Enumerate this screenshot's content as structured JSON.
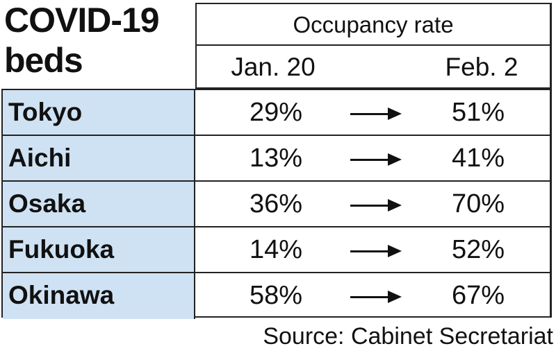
{
  "chart_data": {
    "type": "table",
    "title_lines": [
      "COVID-19",
      "beds"
    ],
    "column_group_header": "Occupancy rate",
    "columns": [
      "Jan. 20",
      "Feb. 2"
    ],
    "rows": [
      {
        "region": "Tokyo",
        "jan20": "29%",
        "feb2": "51%"
      },
      {
        "region": "Aichi",
        "jan20": "13%",
        "feb2": "41%"
      },
      {
        "region": "Osaka",
        "jan20": "36%",
        "feb2": "70%"
      },
      {
        "region": "Fukuoka",
        "jan20": "14%",
        "feb2": "52%"
      },
      {
        "region": "Okinawa",
        "jan20": "58%",
        "feb2": "67%"
      }
    ],
    "source": "Source: Cabinet Secretariat"
  },
  "colors": {
    "region_cell_bg": "#cfe2f3",
    "border": "#222222",
    "text": "#111111"
  }
}
